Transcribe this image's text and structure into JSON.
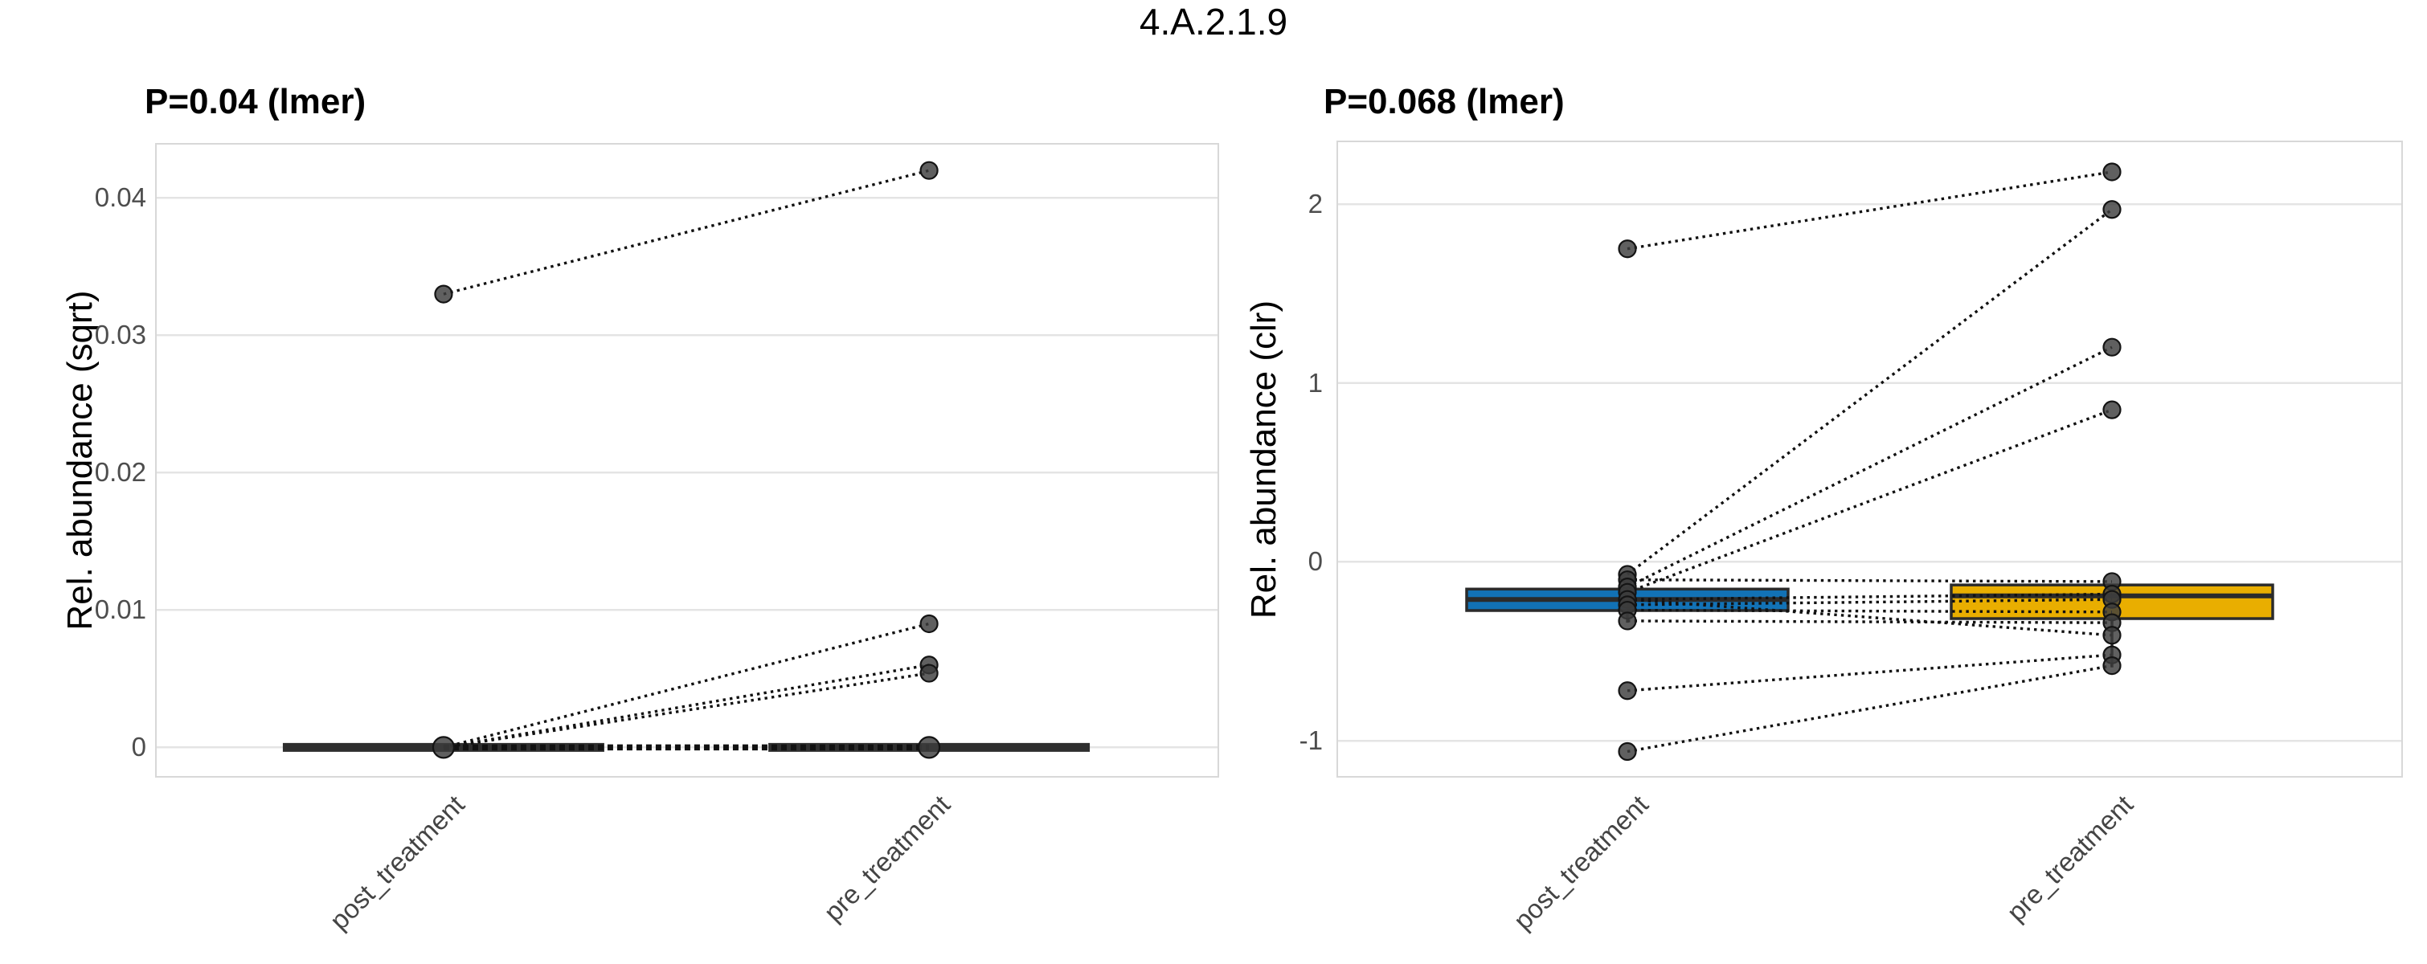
{
  "title": "4.A.2.1.9",
  "colors": {
    "post_box_fill": "#1272B6",
    "pre_box_fill": "#E9AE00",
    "box_stroke": "#2B2B2B",
    "collapsed_box": "#2E2E2E",
    "point_fill": "#3D3D3D",
    "point_stroke": "#141414",
    "pair_line": "#111111",
    "grid": "#E4E4E4",
    "panel_border": "#D8D8D8",
    "tick_label": "#4D4D4D"
  },
  "chart_data": [
    {
      "type": "paired-boxplot-scatter",
      "subtitle": "P=0.04 (lmer)",
      "ylabel": "Rel. abundance (sqrt)",
      "categories": [
        "post_treatment",
        "pre_treatment"
      ],
      "ylim": [
        -0.0022,
        0.044
      ],
      "grid": true,
      "legend_position": "none",
      "yticks": [
        {
          "v": 0,
          "label": "0"
        },
        {
          "v": 0.01,
          "label": "0.01"
        },
        {
          "v": 0.02,
          "label": "0.02"
        },
        {
          "v": 0.03,
          "label": "0.03"
        },
        {
          "v": 0.04,
          "label": "0.04"
        }
      ],
      "boxes": [
        {
          "category": "post_treatment",
          "collapsed": true,
          "median": 0,
          "q1": 0,
          "q3": 0
        },
        {
          "category": "pre_treatment",
          "collapsed": true,
          "median": 0,
          "q1": 0,
          "q3": 0
        }
      ],
      "points": {
        "post_treatment": [
          0.033,
          0
        ],
        "pre_treatment": [
          0.042,
          0.009,
          0.006,
          0.0054,
          0
        ]
      },
      "pairs": [
        {
          "post": 0.033,
          "pre": 0.042
        },
        {
          "post": 0,
          "pre": 0.009
        },
        {
          "post": 0,
          "pre": 0.006
        },
        {
          "post": 0,
          "pre": 0.0054
        },
        {
          "post": 0,
          "pre": 0,
          "bold": true
        }
      ]
    },
    {
      "type": "paired-boxplot-scatter",
      "subtitle": "P=0.068 (lmer)",
      "ylabel": "Rel. abundance (clr)",
      "categories": [
        "post_treatment",
        "pre_treatment"
      ],
      "ylim": [
        -1.206,
        2.355
      ],
      "grid": true,
      "legend_position": "none",
      "yticks": [
        {
          "v": -1,
          "label": "-1"
        },
        {
          "v": 0,
          "label": "0"
        },
        {
          "v": 1,
          "label": "1"
        },
        {
          "v": 2,
          "label": "2"
        }
      ],
      "boxes": [
        {
          "category": "post_treatment",
          "fill": "#1272B6",
          "q1": -0.272,
          "median": -0.21,
          "q3": -0.152,
          "whisker_low": -0.34
        },
        {
          "category": "pre_treatment",
          "fill": "#E9AE00",
          "q1": -0.317,
          "median": -0.19,
          "q3": -0.129,
          "whisker_low": -0.59
        }
      ],
      "points": {
        "post_treatment": [
          1.75,
          -0.07,
          -0.1,
          -0.14,
          -0.17,
          -0.21,
          -0.24,
          -0.27,
          -0.33,
          -0.72,
          -1.06
        ],
        "pre_treatment": [
          2.18,
          1.97,
          1.2,
          0.85,
          -0.11,
          -0.18,
          -0.21,
          -0.28,
          -0.34,
          -0.41,
          -0.52,
          -0.58
        ]
      },
      "pairs": [
        {
          "post": 1.75,
          "pre": 2.18
        },
        {
          "post": -0.07,
          "pre": 1.97
        },
        {
          "post": -0.14,
          "pre": 1.2
        },
        {
          "post": -0.17,
          "pre": 0.85
        },
        {
          "post": -0.1,
          "pre": -0.11
        },
        {
          "post": -0.21,
          "pre": -0.18
        },
        {
          "post": -0.24,
          "pre": -0.21
        },
        {
          "post": -0.27,
          "pre": -0.28
        },
        {
          "post": -0.33,
          "pre": -0.34
        },
        {
          "post": -0.21,
          "pre": -0.41
        },
        {
          "post": -0.72,
          "pre": -0.52
        },
        {
          "post": -1.06,
          "pre": -0.58
        }
      ]
    }
  ]
}
